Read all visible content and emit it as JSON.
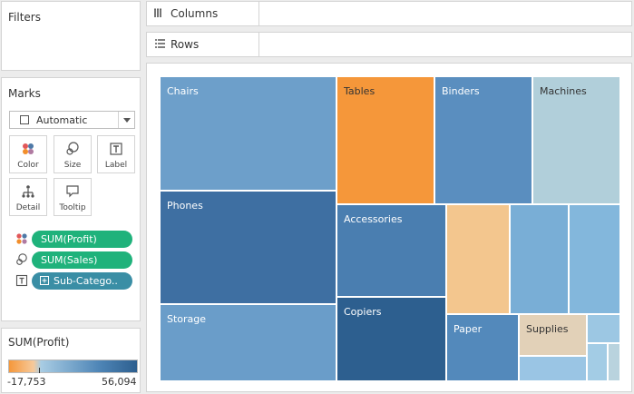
{
  "filters": {
    "title": "Filters"
  },
  "columns_shelf": {
    "label": "Columns",
    "icon": "columns-icon"
  },
  "rows_shelf": {
    "label": "Rows",
    "icon": "rows-icon"
  },
  "marks": {
    "title": "Marks",
    "mark_type": "Automatic",
    "buttons": [
      {
        "label": "Color",
        "icon": "color-icon"
      },
      {
        "label": "Size",
        "icon": "size-icon"
      },
      {
        "label": "Label",
        "icon": "label-icon"
      },
      {
        "label": "Detail",
        "icon": "detail-icon"
      },
      {
        "label": "Tooltip",
        "icon": "tooltip-icon"
      }
    ],
    "fields": [
      {
        "type": "color",
        "label": "SUM(Profit)"
      },
      {
        "type": "size",
        "label": "SUM(Sales)"
      },
      {
        "type": "label",
        "label": "Sub-Catego.."
      }
    ]
  },
  "legend": {
    "title": "SUM(Profit)",
    "min": "-17,753",
    "max": "56,094"
  },
  "treemap": [
    {
      "label": "Chairs",
      "color": "#6d9fca",
      "text_color": "#ffffff"
    },
    {
      "label": "Tables",
      "color": "#f5973a",
      "text_color": "#333333"
    },
    {
      "label": "Binders",
      "color": "#5a8ebf",
      "text_color": "#ffffff"
    },
    {
      "label": "Machines",
      "color": "#b1cfda",
      "text_color": "#333333"
    },
    {
      "label": "Phones",
      "color": "#3e6fa2",
      "text_color": "#ffffff"
    },
    {
      "label": "Accessories",
      "color": "#4a7eb0",
      "text_color": "#ffffff"
    },
    {
      "label": "",
      "color": "#f3c68e",
      "text_color": "#333333"
    },
    {
      "label": "",
      "color": "#79aed6",
      "text_color": "#ffffff"
    },
    {
      "label": "",
      "color": "#83b7dc",
      "text_color": "#ffffff"
    },
    {
      "label": "Storage",
      "color": "#6a9dc9",
      "text_color": "#ffffff"
    },
    {
      "label": "Copiers",
      "color": "#2d5f8f",
      "text_color": "#ffffff"
    },
    {
      "label": "Paper",
      "color": "#5389bb",
      "text_color": "#ffffff"
    },
    {
      "label": "Supplies",
      "color": "#e2d1b8",
      "text_color": "#333333"
    },
    {
      "label": "",
      "color": "#9cc7e3",
      "text_color": "#333333"
    },
    {
      "label": "",
      "color": "#9ac5e4",
      "text_color": "#333333"
    },
    {
      "label": "",
      "color": "#a3cce5",
      "text_color": "#333333"
    },
    {
      "label": "",
      "color": "#b9d3de",
      "text_color": "#333333"
    }
  ]
}
